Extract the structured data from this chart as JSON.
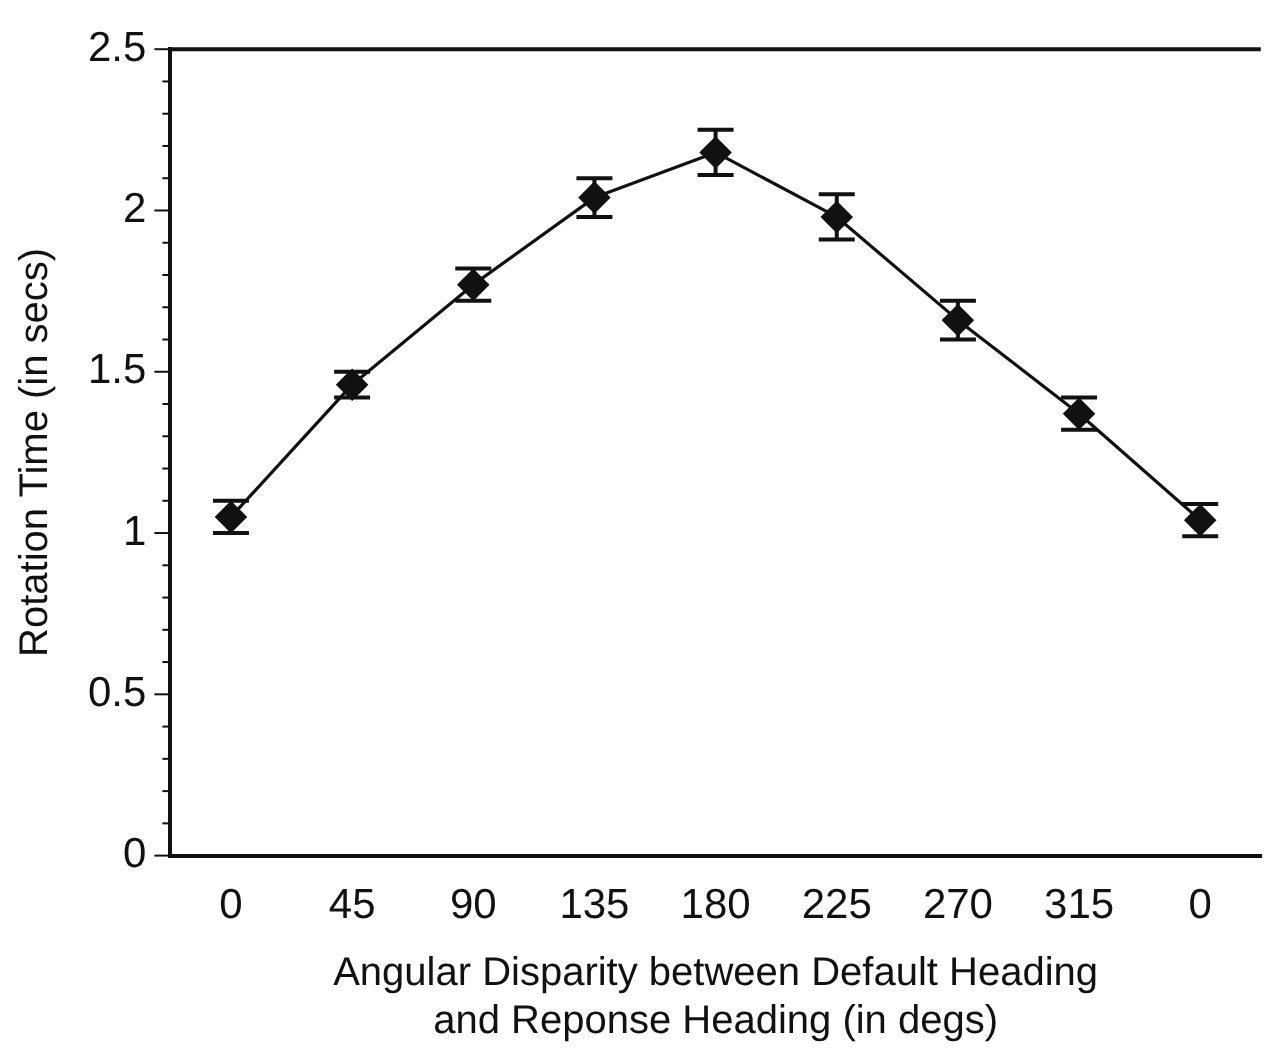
{
  "chart_data": {
    "type": "line",
    "xlabel": "Angular Disparity between Default Heading\nand Reponse Heading (in degs)",
    "ylabel": "Rotation Time (in secs)",
    "categories": [
      "0",
      "45",
      "90",
      "135",
      "180",
      "225",
      "270",
      "315",
      "0"
    ],
    "series": [
      {
        "color": "#111111",
        "values": [
          1.05,
          1.46,
          1.77,
          2.04,
          2.18,
          1.98,
          1.66,
          1.37,
          1.04
        ],
        "errors": [
          0.05,
          0.04,
          0.05,
          0.06,
          0.07,
          0.07,
          0.06,
          0.05,
          0.05
        ]
      }
    ],
    "ylim": [
      0,
      2.5
    ],
    "yticks": [
      0,
      {
        "value": 0.1,
        "label": null
      },
      {
        "value": 0.2,
        "label": null
      },
      {
        "value": 0.3,
        "label": null
      },
      {
        "value": 0.4,
        "label": null
      },
      0.5,
      {
        "value": 0.6,
        "label": null
      },
      {
        "value": 0.7,
        "label": null
      },
      {
        "value": 0.8,
        "label": null
      },
      {
        "value": 0.9,
        "label": null
      },
      1,
      {
        "value": 1.1,
        "label": null
      },
      {
        "value": 1.2,
        "label": null
      },
      {
        "value": 1.3,
        "label": null
      },
      {
        "value": 1.4,
        "label": null
      },
      1.5,
      {
        "value": 1.6,
        "label": null
      },
      {
        "value": 1.7,
        "label": null
      },
      {
        "value": 1.8,
        "label": null
      },
      {
        "value": 1.9,
        "label": null
      },
      2,
      {
        "value": 2.1,
        "label": null
      },
      {
        "value": 2.2,
        "label": null
      },
      {
        "value": 2.3,
        "label": null
      },
      {
        "value": 2.4,
        "label": null
      },
      2.5
    ],
    "grid": false,
    "legend": false,
    "marker": "diamond",
    "line_style": "solid"
  }
}
